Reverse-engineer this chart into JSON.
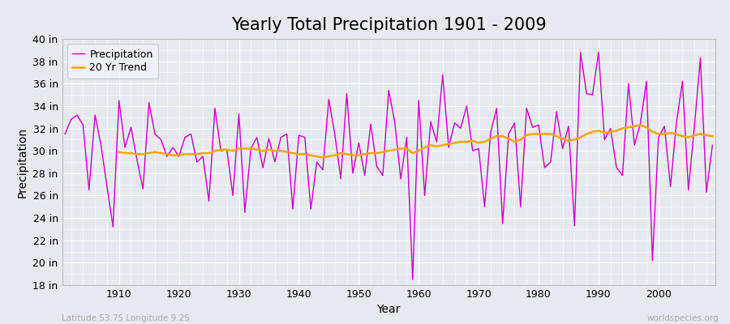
{
  "title": "Yearly Total Precipitation 1901 - 2009",
  "xlabel": "Year",
  "ylabel": "Precipitation",
  "lat_lon_label": "Latitude 53.75 Longitude 9.25",
  "watermark": "worldspecies.org",
  "years": [
    1901,
    1902,
    1903,
    1904,
    1905,
    1906,
    1907,
    1908,
    1909,
    1910,
    1911,
    1912,
    1913,
    1914,
    1915,
    1916,
    1917,
    1918,
    1919,
    1920,
    1921,
    1922,
    1923,
    1924,
    1925,
    1926,
    1927,
    1928,
    1929,
    1930,
    1931,
    1932,
    1933,
    1934,
    1935,
    1936,
    1937,
    1938,
    1939,
    1940,
    1941,
    1942,
    1943,
    1944,
    1945,
    1946,
    1947,
    1948,
    1949,
    1950,
    1951,
    1952,
    1953,
    1954,
    1955,
    1956,
    1957,
    1958,
    1959,
    1960,
    1961,
    1962,
    1963,
    1964,
    1965,
    1966,
    1967,
    1968,
    1969,
    1970,
    1971,
    1972,
    1973,
    1974,
    1975,
    1976,
    1977,
    1978,
    1979,
    1980,
    1981,
    1982,
    1983,
    1984,
    1985,
    1986,
    1987,
    1988,
    1989,
    1990,
    1991,
    1992,
    1993,
    1994,
    1995,
    1996,
    1997,
    1998,
    1999,
    2000,
    2001,
    2002,
    2003,
    2004,
    2005,
    2006,
    2007,
    2008,
    2009
  ],
  "precip_in": [
    31.5,
    32.8,
    33.2,
    32.3,
    26.5,
    33.2,
    30.5,
    26.8,
    23.2,
    34.5,
    30.3,
    32.1,
    29.2,
    26.6,
    34.3,
    31.5,
    31.0,
    29.5,
    30.3,
    29.5,
    31.2,
    31.5,
    29.0,
    29.5,
    25.5,
    33.8,
    30.0,
    30.1,
    26.0,
    33.3,
    24.5,
    30.2,
    31.2,
    28.5,
    31.1,
    29.0,
    31.2,
    31.5,
    24.8,
    31.4,
    31.2,
    24.8,
    29.0,
    28.3,
    34.6,
    31.5,
    27.5,
    35.1,
    28.0,
    30.7,
    27.8,
    32.4,
    28.6,
    27.8,
    35.4,
    32.6,
    27.5,
    31.2,
    18.5,
    34.5,
    26.0,
    32.6,
    30.8,
    36.8,
    30.3,
    32.5,
    32.0,
    34.0,
    30.0,
    30.2,
    25.0,
    31.6,
    33.8,
    23.5,
    31.5,
    32.5,
    25.0,
    33.8,
    32.1,
    32.3,
    28.5,
    29.0,
    33.5,
    30.2,
    32.2,
    23.3,
    38.8,
    35.1,
    35.0,
    38.8,
    31.0,
    32.0,
    28.5,
    27.8,
    36.0,
    30.5,
    32.5,
    36.2,
    20.2,
    31.2,
    32.2,
    26.8,
    32.5,
    36.2,
    26.5,
    32.2,
    38.3,
    26.3,
    30.5
  ],
  "trend_years": [
    1910,
    1911,
    1912,
    1913,
    1914,
    1915,
    1916,
    1917,
    1918,
    1919,
    1920,
    1921,
    1922,
    1923,
    1924,
    1925,
    1926,
    1927,
    1928,
    1929,
    1930,
    1931,
    1932,
    1933,
    1934,
    1935,
    1936,
    1937,
    1938,
    1939,
    1940,
    1941,
    1942,
    1943,
    1944,
    1945,
    1946,
    1947,
    1948,
    1949,
    1950,
    1951,
    1952,
    1953,
    1954,
    1955,
    1956,
    1957,
    1958,
    1959,
    1960,
    1961,
    1962,
    1963,
    1964,
    1965,
    1966,
    1967,
    1968,
    1969,
    1970,
    1971,
    1972,
    1973,
    1974,
    1975,
    1976,
    1977,
    1978,
    1979,
    1980,
    1981,
    1982,
    1983,
    1984,
    1985,
    1986,
    1987,
    1988,
    1989,
    1990,
    1991,
    1992,
    1993,
    1994,
    1995,
    1996,
    1997,
    1998,
    1999,
    2000,
    2001,
    2002,
    2003,
    2004,
    2005,
    2006,
    2007,
    2008,
    2009
  ],
  "trend_in": [
    29.9,
    29.8,
    29.8,
    29.7,
    29.7,
    29.8,
    29.9,
    29.8,
    29.7,
    29.6,
    29.6,
    29.7,
    29.7,
    29.7,
    29.8,
    29.8,
    30.0,
    30.1,
    30.1,
    30.0,
    30.2,
    30.2,
    30.2,
    30.1,
    30.0,
    30.1,
    30.0,
    30.0,
    29.9,
    29.8,
    29.7,
    29.7,
    29.6,
    29.5,
    29.4,
    29.5,
    29.6,
    29.8,
    29.7,
    29.6,
    29.6,
    29.7,
    29.8,
    29.8,
    29.9,
    30.0,
    30.1,
    30.2,
    30.2,
    29.8,
    30.0,
    30.3,
    30.5,
    30.4,
    30.5,
    30.6,
    30.7,
    30.8,
    30.8,
    30.9,
    30.7,
    30.8,
    31.1,
    31.3,
    31.3,
    31.1,
    30.8,
    31.0,
    31.4,
    31.5,
    31.5,
    31.5,
    31.5,
    31.3,
    31.1,
    30.9,
    31.0,
    31.2,
    31.5,
    31.7,
    31.8,
    31.6,
    31.7,
    31.8,
    32.0,
    32.1,
    32.2,
    32.3,
    32.1,
    31.7,
    31.5,
    31.5,
    31.6,
    31.5,
    31.3,
    31.2,
    31.4,
    31.5,
    31.4,
    31.3
  ],
  "precip_color": "#CC00CC",
  "trend_color": "#FFA500",
  "background_color": "#E8E8F0",
  "plot_bg_color": "#E8E8F0",
  "grid_color": "#FFFFFF",
  "ylim_in": [
    18,
    40
  ],
  "yticks_in": [
    18,
    20,
    22,
    24,
    26,
    28,
    30,
    32,
    34,
    36,
    38,
    40
  ],
  "xticks": [
    1910,
    1920,
    1930,
    1940,
    1950,
    1960,
    1970,
    1980,
    1990,
    2000
  ],
  "title_fontsize": 15,
  "axis_label_fontsize": 10,
  "tick_fontsize": 9,
  "legend_fontsize": 9
}
